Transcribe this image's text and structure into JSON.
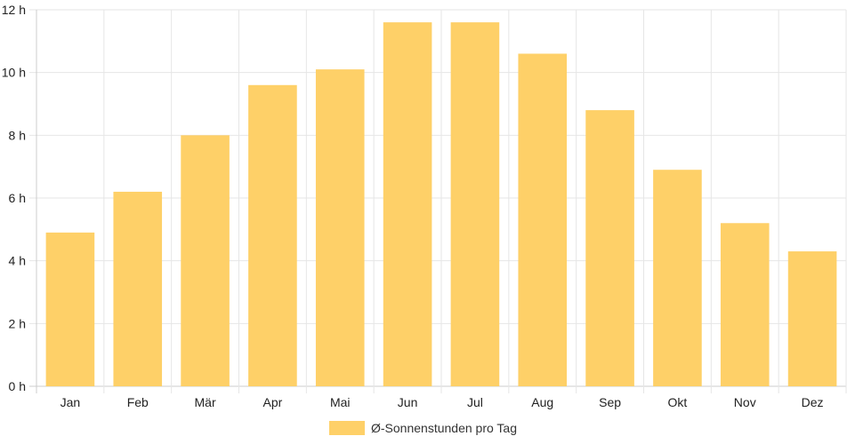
{
  "chart_data": {
    "type": "bar",
    "categories": [
      "Jan",
      "Feb",
      "Mär",
      "Apr",
      "Mai",
      "Jun",
      "Jul",
      "Aug",
      "Sep",
      "Okt",
      "Nov",
      "Dez"
    ],
    "series": [
      {
        "name": "Ø-Sonnenstunden pro Tag",
        "values": [
          4.9,
          6.2,
          8.0,
          9.6,
          10.1,
          11.6,
          11.6,
          10.6,
          8.8,
          6.9,
          5.2,
          4.3
        ]
      }
    ],
    "yticks": [
      "0 h",
      "2 h",
      "4 h",
      "6 h",
      "8 h",
      "10 h",
      "12 h"
    ],
    "ylim": [
      0,
      12
    ],
    "ytick_step": 2,
    "grid": true,
    "legend_position": "bottom",
    "bar_color": "#fed068",
    "grid_color": "#e6e6e6"
  }
}
